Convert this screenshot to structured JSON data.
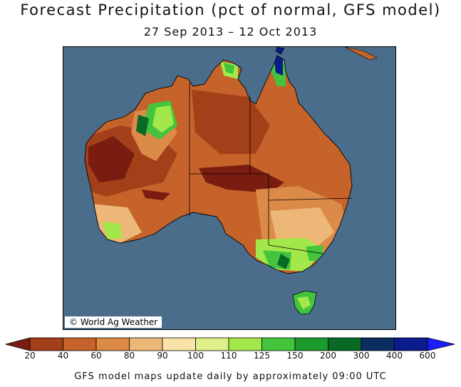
{
  "title": "Forecast Precipitation (pct of normal, GFS model)",
  "subtitle": "27 Sep 2013 – 12 Oct 2013",
  "credit": "© World Ag Weather",
  "footer": "GFS model maps update daily by approximately 09:00 UTC",
  "ocean_color": "#4a6d8c",
  "legend": {
    "ticks": [
      "20",
      "40",
      "60",
      "80",
      "90",
      "100",
      "110",
      "125",
      "150",
      "200",
      "300",
      "400",
      "600"
    ],
    "colors": [
      "#7a1d10",
      "#a3401a",
      "#c5632a",
      "#dc8a48",
      "#edb877",
      "#f9e3a8",
      "#dff08a",
      "#a3e84a",
      "#44c43c",
      "#1a9a2c",
      "#086a25",
      "#0b2d61",
      "#0a1c8e",
      "#1c1cff"
    ]
  }
}
